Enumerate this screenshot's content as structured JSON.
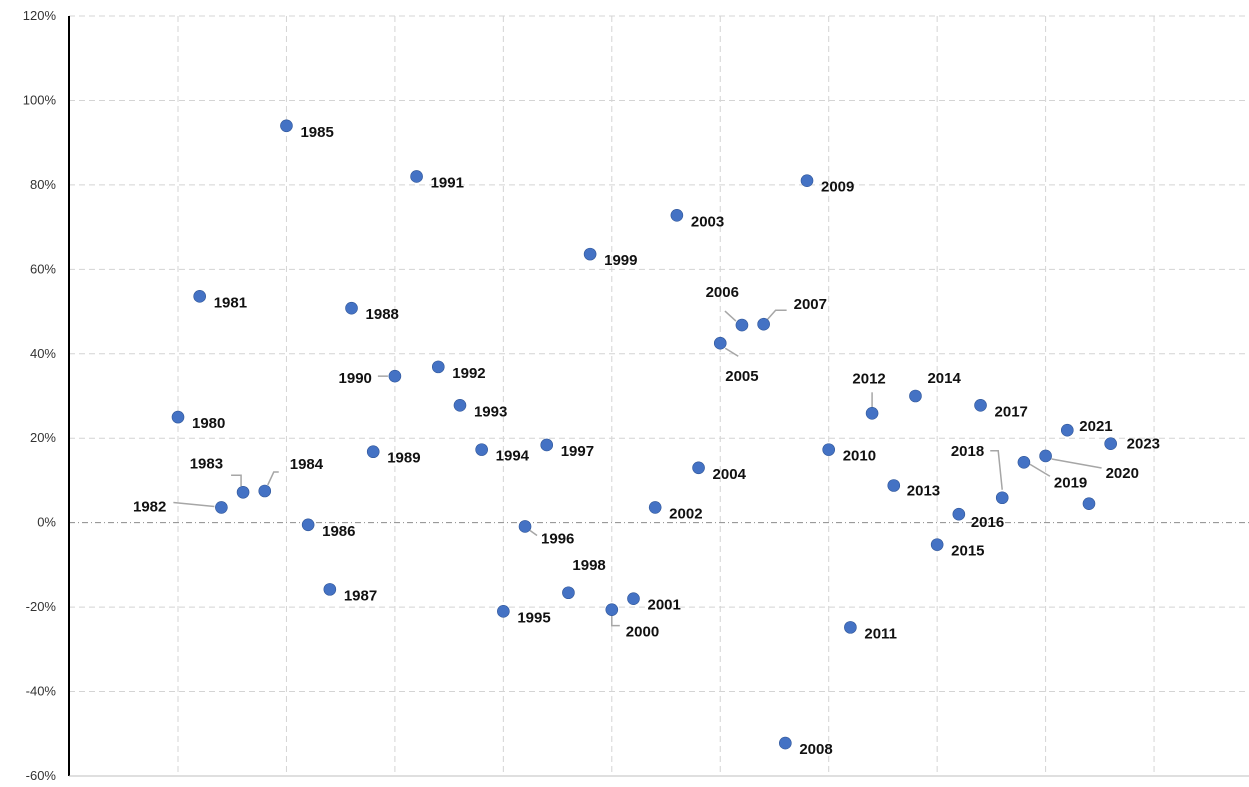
{
  "chart_data": {
    "type": "scatter",
    "title": "",
    "xlabel": "",
    "ylabel": "",
    "y_unit": "%",
    "ylim": [
      -60,
      120
    ],
    "y_ticks": [
      120,
      100,
      80,
      60,
      40,
      20,
      0,
      -20,
      -40,
      -60
    ],
    "y_tick_labels": [
      "120%",
      "100%",
      "80%",
      "60%",
      "40%",
      "20%",
      "0%",
      "-20%",
      "-40%",
      "-60%"
    ],
    "grid": true,
    "legend": "none",
    "marker_color": "#4472C4",
    "leader_color": "#A6A6A6",
    "points": [
      {
        "label": "1980",
        "x": 0,
        "y": 25
      },
      {
        "label": "1981",
        "x": 0.2,
        "y": 53.6
      },
      {
        "label": "1982",
        "x": 0.4,
        "y": 3.6
      },
      {
        "label": "1983",
        "x": 0.6,
        "y": 7.2
      },
      {
        "label": "1984",
        "x": 0.8,
        "y": 7.5
      },
      {
        "label": "1985",
        "x": 1.0,
        "y": 94
      },
      {
        "label": "1986",
        "x": 1.2,
        "y": -0.5
      },
      {
        "label": "1987",
        "x": 1.4,
        "y": -15.8
      },
      {
        "label": "1988",
        "x": 1.6,
        "y": 50.8
      },
      {
        "label": "1989",
        "x": 1.8,
        "y": 16.8
      },
      {
        "label": "1990",
        "x": 2.0,
        "y": 34.7
      },
      {
        "label": "1991",
        "x": 2.2,
        "y": 82
      },
      {
        "label": "1992",
        "x": 2.4,
        "y": 36.9
      },
      {
        "label": "1993",
        "x": 2.6,
        "y": 27.8
      },
      {
        "label": "1994",
        "x": 2.8,
        "y": 17.3
      },
      {
        "label": "1995",
        "x": 3.0,
        "y": -21
      },
      {
        "label": "1996",
        "x": 3.2,
        "y": -0.9
      },
      {
        "label": "1997",
        "x": 3.4,
        "y": 18.4
      },
      {
        "label": "1998",
        "x": 3.6,
        "y": -16.6
      },
      {
        "label": "1999",
        "x": 3.8,
        "y": 63.6
      },
      {
        "label": "2000",
        "x": 4.0,
        "y": -20.6
      },
      {
        "label": "2001",
        "x": 4.2,
        "y": -18
      },
      {
        "label": "2002",
        "x": 4.4,
        "y": 3.6
      },
      {
        "label": "2003",
        "x": 4.6,
        "y": 72.8
      },
      {
        "label": "2004",
        "x": 4.8,
        "y": 13
      },
      {
        "label": "2005",
        "x": 5.0,
        "y": 42.5
      },
      {
        "label": "2006",
        "x": 5.2,
        "y": 46.8
      },
      {
        "label": "2007",
        "x": 5.4,
        "y": 47
      },
      {
        "label": "2008",
        "x": 5.6,
        "y": -52.2
      },
      {
        "label": "2009",
        "x": 5.8,
        "y": 81
      },
      {
        "label": "2010",
        "x": 6.0,
        "y": 17.3
      },
      {
        "label": "2011",
        "x": 6.2,
        "y": -24.8
      },
      {
        "label": "2012",
        "x": 6.4,
        "y": 25.9
      },
      {
        "label": "2013",
        "x": 6.6,
        "y": 8.8
      },
      {
        "label": "2014",
        "x": 6.8,
        "y": 30
      },
      {
        "label": "2015",
        "x": 7.0,
        "y": -5.2
      },
      {
        "label": "2016",
        "x": 7.2,
        "y": 2
      },
      {
        "label": "2017",
        "x": 7.4,
        "y": 27.8
      },
      {
        "label": "2018",
        "x": 7.6,
        "y": 5.9
      },
      {
        "label": "2019",
        "x": 7.8,
        "y": 14.3
      },
      {
        "label": "2020",
        "x": 8.0,
        "y": 15.8
      },
      {
        "label": "2021",
        "x": 8.2,
        "y": 21.9
      },
      {
        "label": "",
        "x": 8.4,
        "y": 4.5
      },
      {
        "label": "2023",
        "x": 8.6,
        "y": 18.7
      }
    ]
  }
}
